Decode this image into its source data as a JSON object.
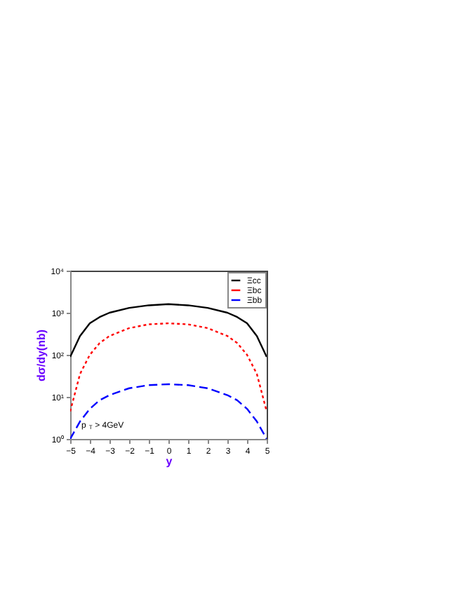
{
  "chart_data": {
    "type": "line",
    "xlabel": "y",
    "ylabel": "dσ/dy(nb)",
    "log": "y",
    "legend": "top right",
    "grid": false,
    "x": [
      -5,
      -4.5,
      -4,
      -3.5,
      -3,
      -2,
      -1,
      0,
      1,
      2,
      3,
      3.5,
      4,
      4.5,
      5
    ],
    "xlim": [
      -5,
      5
    ],
    "xticks": [
      -5,
      -4,
      -3,
      -2,
      -1,
      0,
      1,
      2,
      3,
      4,
      5
    ],
    "ylim": [
      1,
      10000
    ],
    "yticks": [
      {
        "value": 1,
        "label": "10⁰"
      },
      {
        "value": 10,
        "label": "10¹"
      },
      {
        "value": 100,
        "label": "10²"
      },
      {
        "value": 1000,
        "label": "10³"
      },
      {
        "value": 10000,
        "label": "10⁴"
      }
    ],
    "series": [
      {
        "name": "Ξcc",
        "color": "#000000",
        "line_style": "solid",
        "values": [
          89,
          280,
          560,
          790,
          1000,
          1300,
          1500,
          1600,
          1500,
          1300,
          1000,
          790,
          560,
          280,
          89
        ]
      },
      {
        "name": "Ξbc",
        "color": "#ff0000",
        "line_style": "dotted",
        "values": [
          4.5,
          35,
          100,
          190,
          280,
          430,
          530,
          560,
          530,
          430,
          280,
          190,
          100,
          35,
          4.5
        ]
      },
      {
        "name": "Ξbb",
        "color": "#0000ff",
        "line_style": "dashed",
        "values": [
          1.0,
          2.6,
          5.2,
          8.3,
          11,
          16,
          19,
          20,
          19,
          16,
          11,
          8.3,
          5.2,
          2.6,
          1.0
        ]
      }
    ],
    "annotations": [
      "p$_{T}$ > 4GeV"
    ]
  }
}
